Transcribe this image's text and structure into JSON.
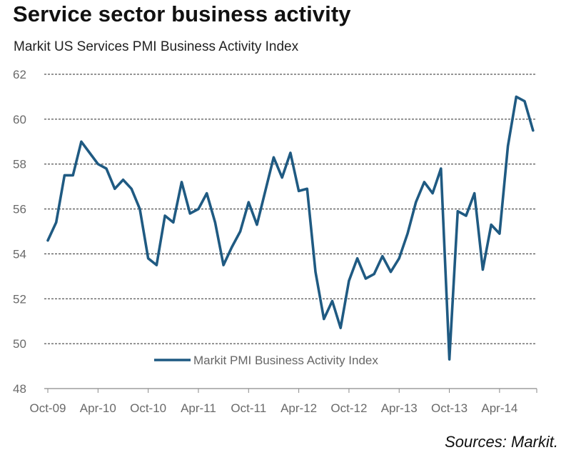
{
  "header": {
    "title": "Service sector business activity",
    "subtitle": "Markit US Services PMI Business Activity Index"
  },
  "footer": {
    "source": "Sources: Markit."
  },
  "colors": {
    "line": "#1f5a82",
    "grid": "#2b2b2b",
    "axis": "#8a8a8a",
    "tick_text": "#6a6a6a"
  },
  "chart_data": {
    "type": "line",
    "title": "",
    "xlabel": "",
    "ylabel": "",
    "ylim": [
      48,
      62
    ],
    "y_ticks": [
      "48",
      "50",
      "52",
      "54",
      "56",
      "58",
      "60",
      "62"
    ],
    "x_ticks": [
      "Oct-09",
      "Apr-10",
      "Oct-10",
      "Apr-11",
      "Oct-11",
      "Apr-12",
      "Oct-12",
      "Apr-13",
      "Oct-13",
      "Apr-14"
    ],
    "grid": "horizontal dashed",
    "legend": {
      "position": "bottom-center",
      "entries": [
        "Markit PMI Business Activity Index"
      ]
    },
    "series": [
      {
        "name": "Markit PMI Business Activity Index",
        "x": [
          "Oct-09",
          "Nov-09",
          "Dec-09",
          "Jan-10",
          "Feb-10",
          "Mar-10",
          "Apr-10",
          "May-10",
          "Jun-10",
          "Jul-10",
          "Aug-10",
          "Sep-10",
          "Oct-10",
          "Nov-10",
          "Dec-10",
          "Jan-11",
          "Feb-11",
          "Mar-11",
          "Apr-11",
          "May-11",
          "Jun-11",
          "Jul-11",
          "Aug-11",
          "Sep-11",
          "Oct-11",
          "Nov-11",
          "Dec-11",
          "Jan-12",
          "Feb-12",
          "Mar-12",
          "Apr-12",
          "May-12",
          "Jun-12",
          "Jul-12",
          "Aug-12",
          "Sep-12",
          "Oct-12",
          "Nov-12",
          "Dec-12",
          "Jan-13",
          "Feb-13",
          "Mar-13",
          "Apr-13",
          "May-13",
          "Jun-13",
          "Jul-13",
          "Aug-13",
          "Sep-13",
          "Oct-13",
          "Nov-13",
          "Dec-13",
          "Jan-14",
          "Feb-14",
          "Mar-14",
          "Apr-14",
          "May-14",
          "Jun-14",
          "Jul-14",
          "Aug-14"
        ],
        "values": [
          54.6,
          55.4,
          57.5,
          57.5,
          59.0,
          58.5,
          58.0,
          57.8,
          56.9,
          57.3,
          56.9,
          56.0,
          53.8,
          53.5,
          55.7,
          55.4,
          57.2,
          55.8,
          56.0,
          56.7,
          55.4,
          53.5,
          54.3,
          55.0,
          56.3,
          55.3,
          56.8,
          58.3,
          57.4,
          58.5,
          56.8,
          56.9,
          53.2,
          51.1,
          51.9,
          50.7,
          52.8,
          53.8,
          52.9,
          53.1,
          53.9,
          53.2,
          53.8,
          54.9,
          56.3,
          57.2,
          56.7,
          57.8,
          49.3,
          55.9,
          55.7,
          56.7,
          53.3,
          55.3,
          54.9,
          58.8,
          61.0,
          60.8,
          59.5
        ]
      }
    ]
  }
}
